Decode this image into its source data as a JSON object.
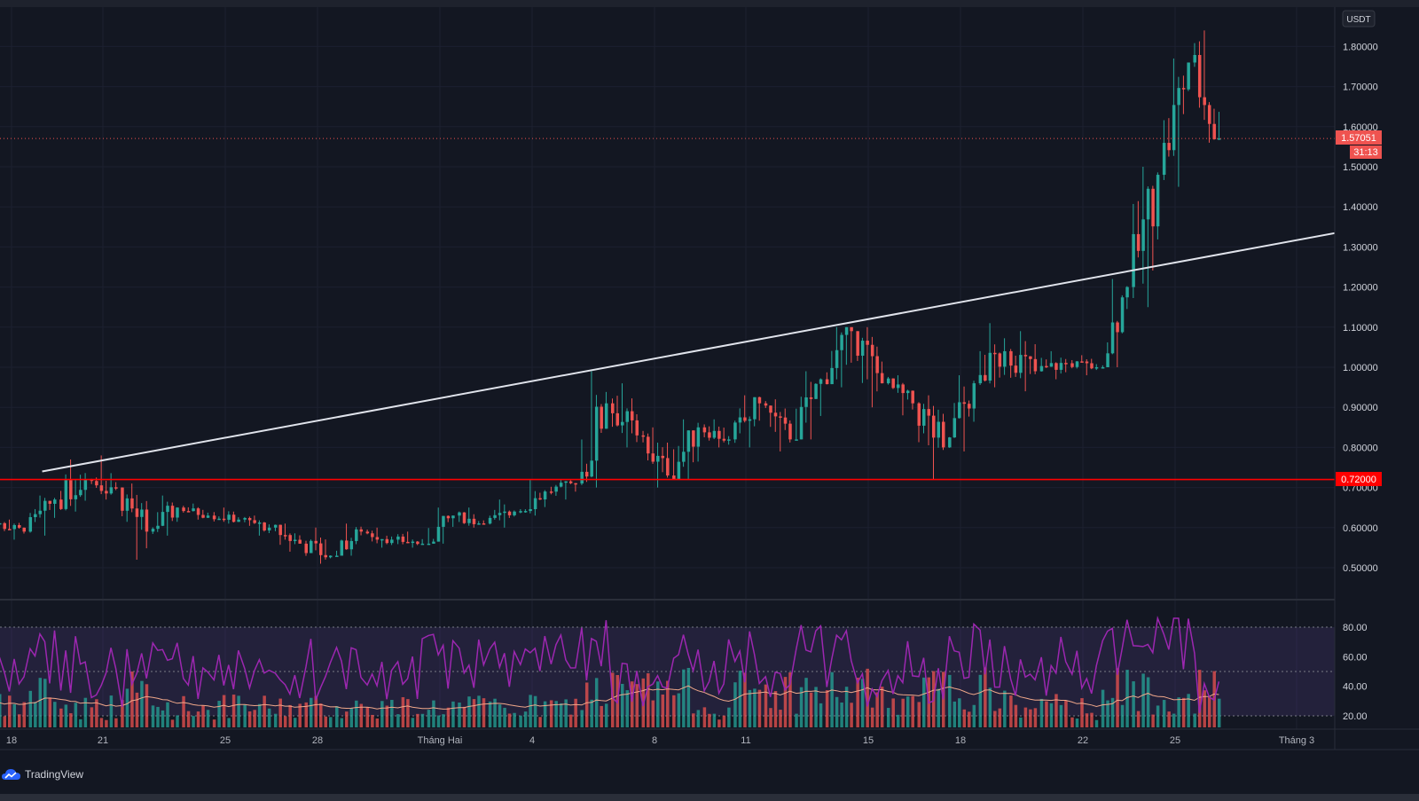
{
  "brand": {
    "name": "TradingView",
    "icon": "tradingview-cloud-icon"
  },
  "price_axis": {
    "currency": "USDT",
    "ticks": [
      "1.80000",
      "1.70000",
      "1.60000",
      "1.50000",
      "1.40000",
      "1.30000",
      "1.20000",
      "1.10000",
      "1.00000",
      "0.90000",
      "0.80000",
      "0.70000",
      "0.60000",
      "0.50000"
    ],
    "current_price_label": "1.57051",
    "countdown_label": "31:13",
    "support_label": "0.72000"
  },
  "rsi_axis": {
    "ticks": [
      "80.00",
      "60.00",
      "40.00",
      "20.00"
    ]
  },
  "time_axis": {
    "labels": [
      "18",
      "21",
      "25",
      "28",
      "Tháng Hai",
      "4",
      "8",
      "11",
      "15",
      "18",
      "22",
      "25",
      "Tháng 3"
    ]
  },
  "colors": {
    "background": "#131722",
    "up": "#26a69a",
    "down": "#ef5350",
    "support_line": "#ff0000",
    "trend_line": "#e0e3eb",
    "rsi_line": "#9c27b0",
    "rsi_band": "#7e57c2",
    "volume_ma": "#f0a88a"
  },
  "chart_data": {
    "type": "candlestick",
    "ylim": [
      0.41,
      1.9
    ],
    "support_level": 0.72,
    "current_price": 1.57051,
    "trendline": {
      "from": {
        "date": "Jan 19",
        "price": 0.74
      },
      "to": {
        "date": "Mar 4",
        "price": 1.36
      }
    },
    "candles": [
      {
        "date": "Jan 17",
        "open": 0.63,
        "high": 0.66,
        "low": 0.6,
        "close": 0.61
      },
      {
        "date": "Jan 18",
        "open": 0.61,
        "high": 0.62,
        "low": 0.57,
        "close": 0.59
      },
      {
        "date": "Jan 19",
        "open": 0.59,
        "high": 0.68,
        "low": 0.58,
        "close": 0.67
      },
      {
        "date": "Jan 20",
        "open": 0.67,
        "high": 0.77,
        "low": 0.64,
        "close": 0.72
      },
      {
        "date": "Jan 21",
        "open": 0.72,
        "high": 0.78,
        "low": 0.67,
        "close": 0.7
      },
      {
        "date": "Jan 22",
        "open": 0.7,
        "high": 0.71,
        "low": 0.52,
        "close": 0.59
      },
      {
        "date": "Jan 23",
        "open": 0.59,
        "high": 0.68,
        "low": 0.58,
        "close": 0.65
      },
      {
        "date": "Jan 24",
        "open": 0.65,
        "high": 0.66,
        "low": 0.62,
        "close": 0.63
      },
      {
        "date": "Jan 25",
        "open": 0.63,
        "high": 0.65,
        "low": 0.61,
        "close": 0.62
      },
      {
        "date": "Jan 26",
        "open": 0.62,
        "high": 0.63,
        "low": 0.58,
        "close": 0.6
      },
      {
        "date": "Jan 27",
        "open": 0.6,
        "high": 0.61,
        "low": 0.54,
        "close": 0.56
      },
      {
        "date": "Jan 28",
        "open": 0.56,
        "high": 0.6,
        "low": 0.51,
        "close": 0.53
      },
      {
        "date": "Jan 29",
        "open": 0.53,
        "high": 0.61,
        "low": 0.53,
        "close": 0.59
      },
      {
        "date": "Jan 30",
        "open": 0.59,
        "high": 0.6,
        "low": 0.55,
        "close": 0.57
      },
      {
        "date": "Jan 31",
        "open": 0.57,
        "high": 0.59,
        "low": 0.55,
        "close": 0.56
      },
      {
        "date": "Feb 1",
        "open": 0.56,
        "high": 0.65,
        "low": 0.56,
        "close": 0.63
      },
      {
        "date": "Feb 2",
        "open": 0.63,
        "high": 0.65,
        "low": 0.6,
        "close": 0.61
      },
      {
        "date": "Feb 3",
        "open": 0.61,
        "high": 0.67,
        "low": 0.6,
        "close": 0.64
      },
      {
        "date": "Feb 4",
        "open": 0.64,
        "high": 0.72,
        "low": 0.63,
        "close": 0.69
      },
      {
        "date": "Feb 5",
        "open": 0.69,
        "high": 0.72,
        "low": 0.67,
        "close": 0.71
      },
      {
        "date": "Feb 6",
        "open": 0.71,
        "high": 0.99,
        "low": 0.7,
        "close": 0.91
      },
      {
        "date": "Feb 7",
        "open": 0.91,
        "high": 0.96,
        "low": 0.8,
        "close": 0.83
      },
      {
        "date": "Feb 8",
        "open": 0.83,
        "high": 0.85,
        "low": 0.7,
        "close": 0.73
      },
      {
        "date": "Feb 9",
        "open": 0.73,
        "high": 0.87,
        "low": 0.72,
        "close": 0.85
      },
      {
        "date": "Feb 10",
        "open": 0.85,
        "high": 0.87,
        "low": 0.8,
        "close": 0.82
      },
      {
        "date": "Feb 11",
        "open": 0.82,
        "high": 0.93,
        "low": 0.8,
        "close": 0.91
      },
      {
        "date": "Feb 12",
        "open": 0.91,
        "high": 0.92,
        "low": 0.79,
        "close": 0.82
      },
      {
        "date": "Feb 13",
        "open": 0.82,
        "high": 0.99,
        "low": 0.82,
        "close": 0.97
      },
      {
        "date": "Feb 14",
        "open": 0.97,
        "high": 1.1,
        "low": 0.95,
        "close": 1.09
      },
      {
        "date": "Feb 15",
        "open": 1.09,
        "high": 1.1,
        "low": 0.9,
        "close": 0.96
      },
      {
        "date": "Feb 16",
        "open": 0.96,
        "high": 0.98,
        "low": 0.88,
        "close": 0.91
      },
      {
        "date": "Feb 17",
        "open": 0.91,
        "high": 0.93,
        "low": 0.72,
        "close": 0.8
      },
      {
        "date": "Feb 18",
        "open": 0.8,
        "high": 0.98,
        "low": 0.79,
        "close": 0.96
      },
      {
        "date": "Feb 19",
        "open": 0.96,
        "high": 1.11,
        "low": 0.95,
        "close": 1.04
      },
      {
        "date": "Feb 20",
        "open": 1.04,
        "high": 1.09,
        "low": 0.94,
        "close": 0.99
      },
      {
        "date": "Feb 21",
        "open": 0.99,
        "high": 1.04,
        "low": 0.97,
        "close": 1.01
      },
      {
        "date": "Feb 22",
        "open": 1.01,
        "high": 1.03,
        "low": 0.98,
        "close": 1.0
      },
      {
        "date": "Feb 23",
        "open": 1.0,
        "high": 1.22,
        "low": 1.0,
        "close": 1.2
      },
      {
        "date": "Feb 24",
        "open": 1.2,
        "high": 1.5,
        "low": 1.15,
        "close": 1.48
      },
      {
        "date": "Feb 25",
        "open": 1.48,
        "high": 1.77,
        "low": 1.45,
        "close": 1.76
      },
      {
        "date": "Feb 26",
        "open": 1.76,
        "high": 1.84,
        "low": 1.56,
        "close": 1.57051
      }
    ]
  }
}
